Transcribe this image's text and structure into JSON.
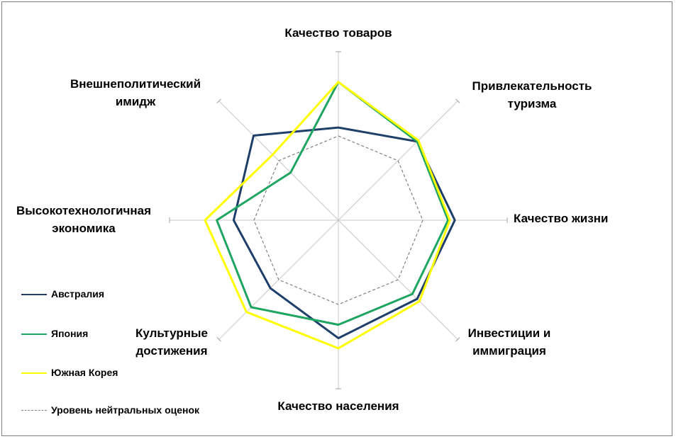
{
  "chart_data": {
    "type": "radar",
    "axes": [
      "Качество товаров",
      "Привлекательность туризма",
      "Качество жизни",
      "Инвестиции и иммиграция",
      "Качество населения",
      "Культурные достижения",
      "Высокотехнологичная экономика",
      "Внешнеполитический имидж"
    ],
    "rlim": [
      0,
      1
    ],
    "grid": "spokes-only",
    "legend_position": "bottom-left",
    "series": [
      {
        "name": "Австралия",
        "color": "#1f3f6b",
        "style": "solid",
        "values": [
          0.55,
          0.66,
          0.69,
          0.66,
          0.7,
          0.57,
          0.62,
          0.71
        ]
      },
      {
        "name": "Япония",
        "color": "#1fa562",
        "style": "solid",
        "values": [
          0.82,
          0.66,
          0.65,
          0.62,
          0.62,
          0.73,
          0.72,
          0.4
        ]
      },
      {
        "name": "Южная Корея",
        "color": "#ffff00",
        "style": "solid",
        "values": [
          0.82,
          0.67,
          0.66,
          0.68,
          0.76,
          0.77,
          0.79,
          0.55
        ]
      },
      {
        "name": "Уровень нейтральных оценок",
        "color": "#7f7f7f",
        "style": "dashed",
        "values": [
          0.5,
          0.5,
          0.5,
          0.5,
          0.5,
          0.5,
          0.5,
          0.5
        ]
      }
    ]
  }
}
